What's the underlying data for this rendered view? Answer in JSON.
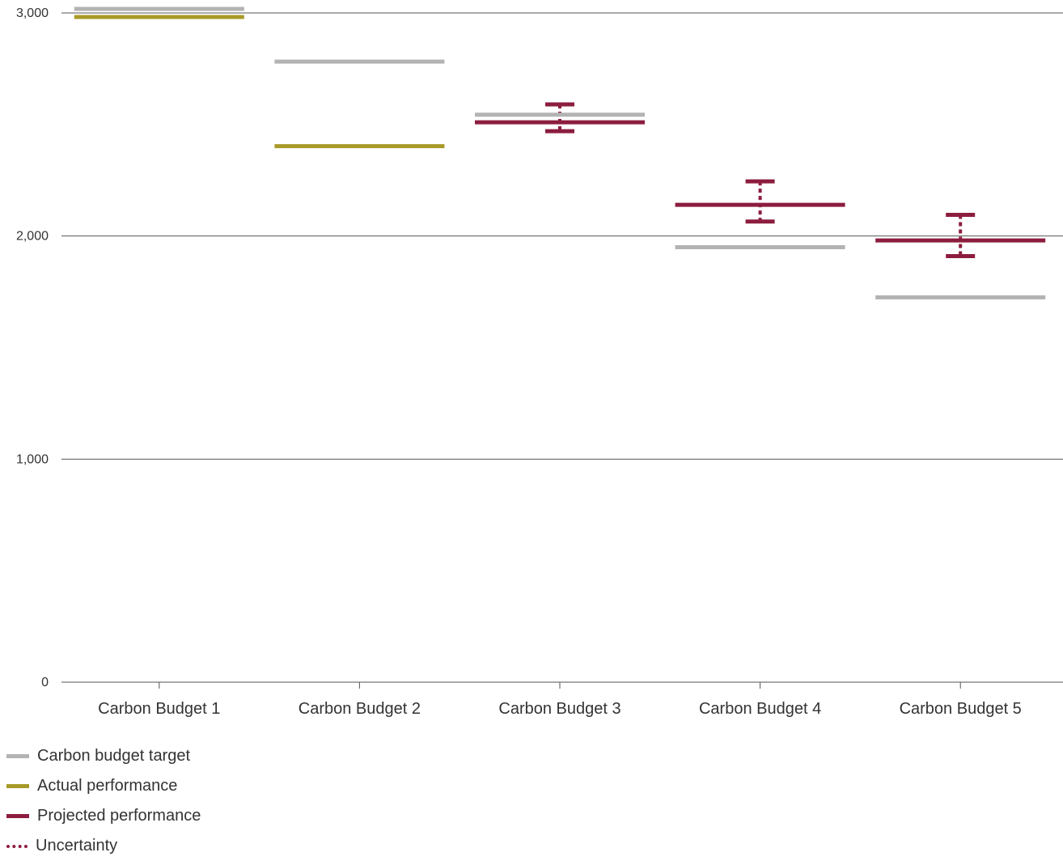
{
  "chart_data": {
    "type": "line",
    "title": "",
    "xlabel": "",
    "ylabel": "",
    "ylim": [
      0,
      3000
    ],
    "yticks": [
      0,
      1000,
      2000,
      3000
    ],
    "ytick_labels": [
      "0",
      "1,000",
      "2,000",
      "3,000"
    ],
    "categories": [
      "Carbon Budget 1",
      "Carbon Budget 2",
      "Carbon Budget 3",
      "Carbon Budget 4",
      "Carbon Budget 5"
    ],
    "grid": true,
    "legend_position": "bottom-left",
    "series": [
      {
        "name": "Carbon budget target",
        "color": "#b3b3b3",
        "values": [
          3018,
          2782,
          2544,
          1950,
          1725
        ]
      },
      {
        "name": "Actual performance",
        "color": "#a89a28",
        "values": [
          2982,
          2403,
          null,
          null,
          null
        ]
      },
      {
        "name": "Projected performance",
        "color": "#8c1d3e",
        "values": [
          null,
          null,
          2510,
          2140,
          1980
        ]
      },
      {
        "name": "Uncertainty",
        "color": "#8c1d3e",
        "style": "dotted",
        "low": [
          null,
          null,
          2470,
          2065,
          1910
        ],
        "high": [
          null,
          null,
          2590,
          2245,
          2095
        ]
      }
    ]
  }
}
